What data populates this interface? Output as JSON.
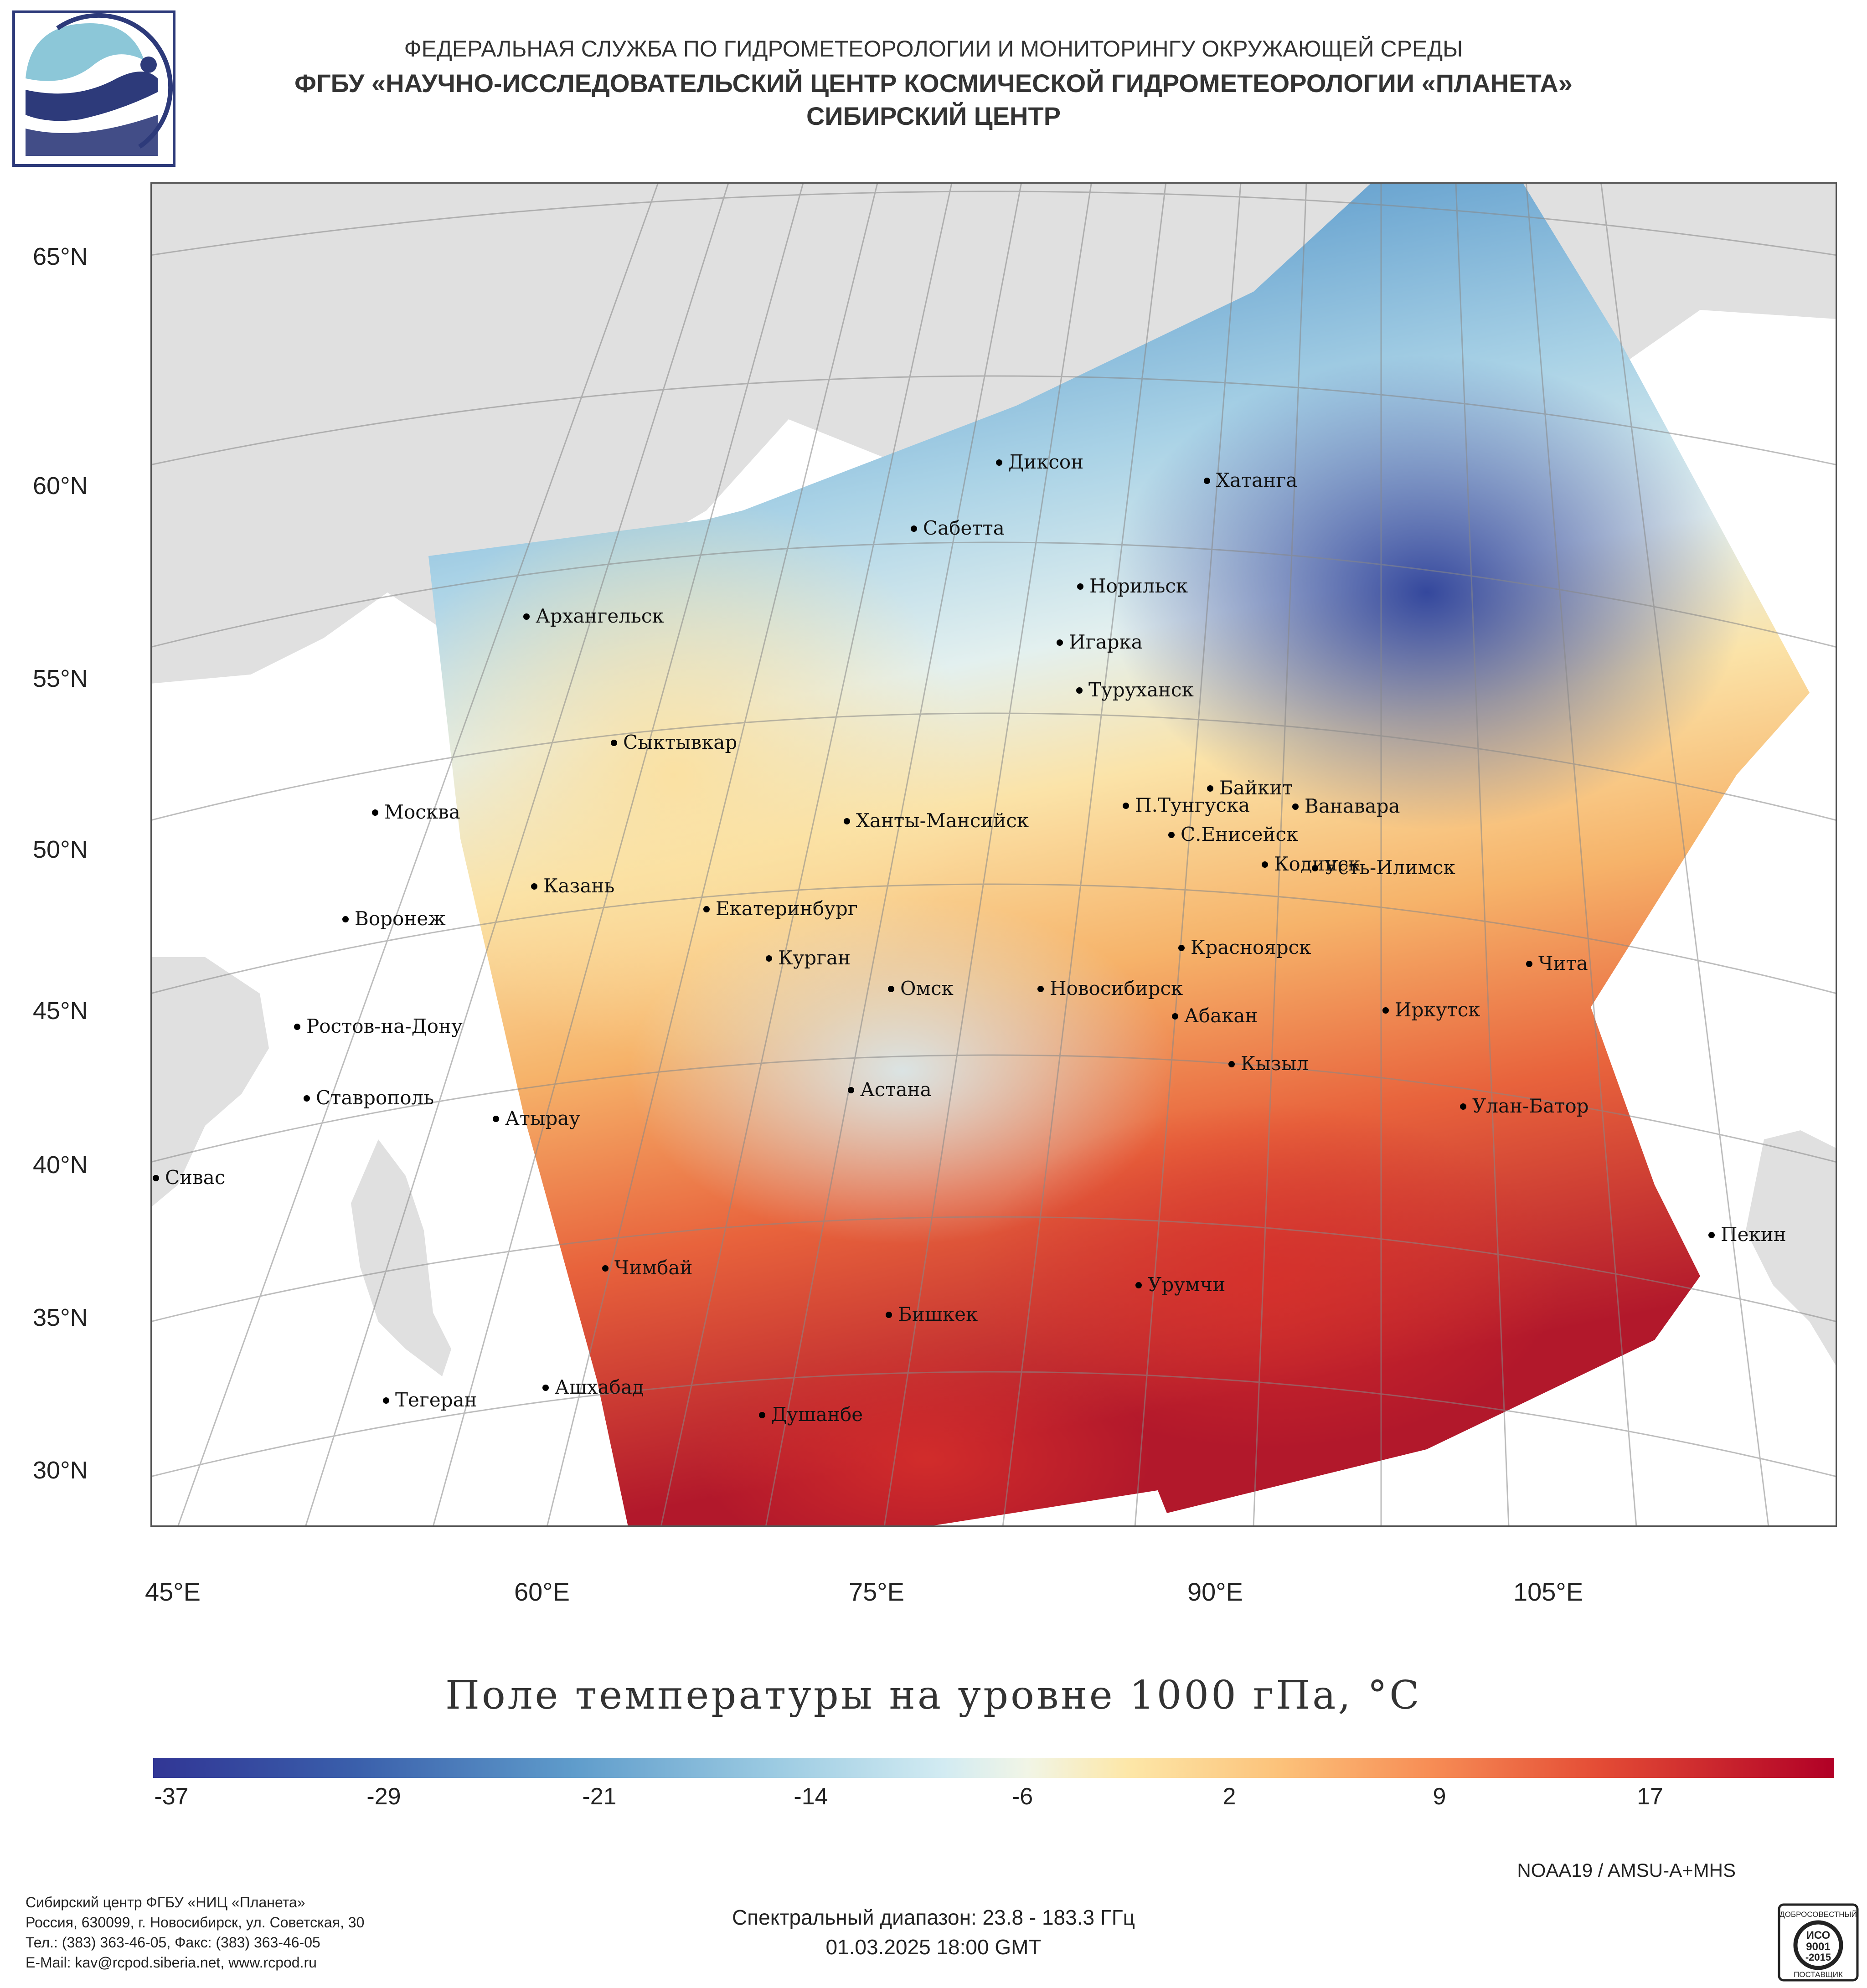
{
  "header": {
    "line1": "ФЕДЕРАЛЬНАЯ СЛУЖБА ПО ГИДРОМЕТЕОРОЛОГИИ И МОНИТОРИНГУ ОКРУЖАЮЩЕЙ СРЕДЫ",
    "line2": "ФГБУ «НАУЧНО-ИССЛЕДОВАТЕЛЬСКИЙ ЦЕНТР КОСМИЧЕСКОЙ ГИДРОМЕТЕОРОЛОГИИ «ПЛАНЕТА»",
    "line3": "СИБИРСКИЙ ЦЕНТР"
  },
  "map": {
    "lat_labels": [
      "65°N",
      "60°N",
      "55°N",
      "50°N",
      "45°N",
      "40°N",
      "35°N",
      "30°N"
    ],
    "lon_labels": [
      "45°E",
      "60°E",
      "75°E",
      "90°E",
      "105°E"
    ],
    "cities": [
      "Диксон",
      "Хатанга",
      "Сабетта",
      "Норильск",
      "Архангельск",
      "Игарка",
      "Туруханск",
      "Сыктывкар",
      "Байкит",
      "П.Тунгуска",
      "Ванавара",
      "Москва",
      "Ханты-Мансийск",
      "С.Енисейск",
      "Кодинск",
      "Усть-Илимск",
      "Казань",
      "Екатеринбург",
      "Воронеж",
      "Красноярск",
      "Курган",
      "Чита",
      "Омск",
      "Новосибирск",
      "Иркутск",
      "Абакан",
      "Ростов-на-Дону",
      "Кызыл",
      "Ставрополь",
      "Астана",
      "Улан-Батор",
      "Атырау",
      "Сивас",
      "Пекин",
      "Чимбай",
      "Урумчи",
      "Бишкек",
      "Ашхабад",
      "Тегеран",
      "Душанбе"
    ],
    "colors": {
      "land": "#e0e0e0",
      "sea": "#ffffff",
      "cold": "#2b3f99",
      "neutral": "#e6f2f2",
      "warm": "#b2182b"
    }
  },
  "title": "Поле температуры на уровне 1000 гПа, °С",
  "colorbar": {
    "labels": [
      "-37",
      "-29",
      "-21",
      "-14",
      "-6",
      "2",
      "9",
      "17"
    ]
  },
  "footer": {
    "satellite": "NOAA19 / AMSU-A+MHS",
    "spectral": "Спектральный диапазон: 23.8 - 183.3 ГГц",
    "datetime": "01.03.2025 18:00 GMT",
    "org": [
      "Сибирский центр ФГБУ «НИЦ «Планета»",
      "Россия, 630099, г. Новосибирск, ул. Советская, 30",
      "Тел.: (383) 363-46-05, Факс: (383) 363-46-05",
      "E-Mail: kav@rcpod.siberia.net, www.rcpod.ru"
    ],
    "iso_badge": {
      "top": "ДОБРОСОВЕСТНЫЙ",
      "mid1": "ИСО",
      "mid2": "9001",
      "mid3": "-2015",
      "bottom": "ПОСТАВЩИК"
    }
  }
}
